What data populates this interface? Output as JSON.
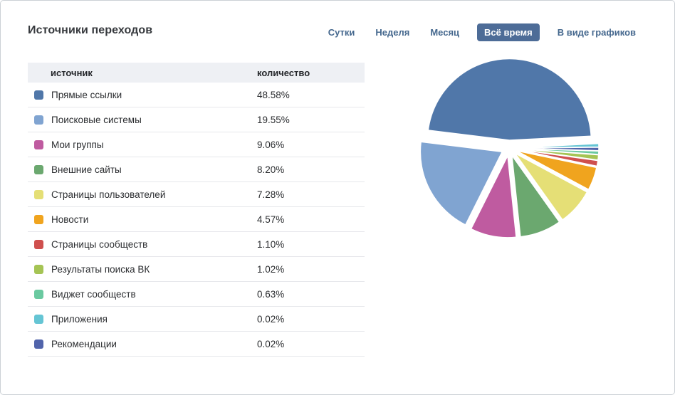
{
  "page": {
    "title": "Источники переходов"
  },
  "tabs": [
    {
      "name": "tab-day",
      "label": "Сутки",
      "active": false
    },
    {
      "name": "tab-week",
      "label": "Неделя",
      "active": false
    },
    {
      "name": "tab-month",
      "label": "Месяц",
      "active": false
    },
    {
      "name": "tab-all-time",
      "label": "Всё время",
      "active": true
    },
    {
      "name": "tab-as-graphs",
      "label": "В виде графиков",
      "active": false
    }
  ],
  "table": {
    "columns": [
      "источник",
      "количество"
    ],
    "rows": [
      {
        "label": "Прямые ссылки",
        "value": "48.58%",
        "color": "#5077a9"
      },
      {
        "label": "Поисковые системы",
        "value": "19.55%",
        "color": "#80a4d1"
      },
      {
        "label": "Мои группы",
        "value": "9.06%",
        "color": "#bf5ba0"
      },
      {
        "label": "Внешние сайты",
        "value": "8.20%",
        "color": "#6ba86f"
      },
      {
        "label": "Страницы пользователей",
        "value": "7.28%",
        "color": "#e5df76"
      },
      {
        "label": "Новости",
        "value": "4.57%",
        "color": "#f0a41e"
      },
      {
        "label": "Страницы сообществ",
        "value": "1.10%",
        "color": "#cf504e"
      },
      {
        "label": "Результаты поиска ВК",
        "value": "1.02%",
        "color": "#a5c454"
      },
      {
        "label": "Виджет сообществ",
        "value": "0.63%",
        "color": "#6ac9a0"
      },
      {
        "label": "Приложения",
        "value": "0.02%",
        "color": "#65c5d4"
      },
      {
        "label": "Рекомендации",
        "value": "0.02%",
        "color": "#5164ab"
      }
    ]
  },
  "chart_data": {
    "type": "pie",
    "title": "Источники переходов",
    "unit": "%",
    "legend_position": "table-left",
    "exploded": true,
    "direction": "clockwise",
    "start_angle_deg": -3,
    "categories": [
      "Прямые ссылки",
      "Поисковые системы",
      "Мои группы",
      "Внешние сайты",
      "Страницы пользователей",
      "Новости",
      "Страницы сообществ",
      "Результаты поиска ВК",
      "Виджет сообществ",
      "Приложения",
      "Рекомендации"
    ],
    "values": [
      48.58,
      19.55,
      9.06,
      8.2,
      7.28,
      4.57,
      1.1,
      1.02,
      0.63,
      0.02,
      0.02
    ],
    "slices": [
      {
        "name": "apps",
        "label": "Приложения",
        "value": 0.02,
        "color": "#65c5d4"
      },
      {
        "name": "recommendations",
        "label": "Рекомендации",
        "value": 0.02,
        "color": "#5164ab"
      },
      {
        "name": "community-widget",
        "label": "Виджет сообществ",
        "value": 0.63,
        "color": "#6ac9a0"
      },
      {
        "name": "vk-search-results",
        "label": "Результаты поиска ВК",
        "value": 1.02,
        "color": "#a5c454"
      },
      {
        "name": "community-pages",
        "label": "Страницы сообществ",
        "value": 1.1,
        "color": "#cf504e"
      },
      {
        "name": "news",
        "label": "Новости",
        "value": 4.57,
        "color": "#f0a41e"
      },
      {
        "name": "user-pages",
        "label": "Страницы пользователей",
        "value": 7.28,
        "color": "#e5df76"
      },
      {
        "name": "external-sites",
        "label": "Внешние сайты",
        "value": 8.2,
        "color": "#6ba86f"
      },
      {
        "name": "my-groups",
        "label": "Мои группы",
        "value": 9.06,
        "color": "#bf5ba0"
      },
      {
        "name": "search-engines",
        "label": "Поисковые системы",
        "value": 19.55,
        "color": "#80a4d1"
      },
      {
        "name": "direct-links",
        "label": "Прямые ссылки",
        "value": 48.58,
        "color": "#5077a9"
      }
    ]
  }
}
